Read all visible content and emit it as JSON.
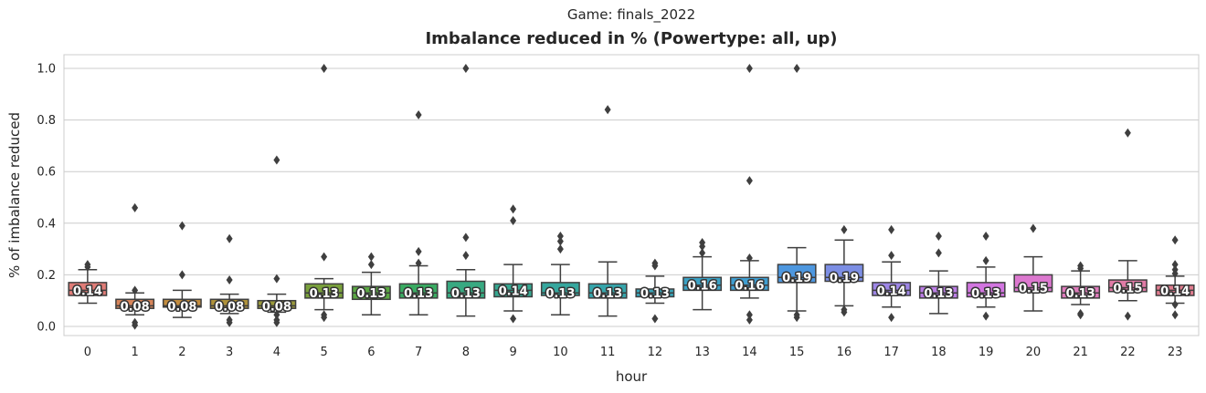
{
  "chart_data": {
    "type": "box",
    "suptitle": "Game: finals_2022",
    "title": "Imbalance reduced in % (Powertype: all, up)",
    "xlabel": "hour",
    "ylabel": "% of imbalance reduced",
    "ylim": [
      -0.04,
      1.05
    ],
    "yticks": [
      "0.0",
      "0.2",
      "0.4",
      "0.6",
      "0.8",
      "1.0"
    ],
    "grid": true,
    "legend": "none",
    "categories": [
      "0",
      "1",
      "2",
      "3",
      "4",
      "5",
      "6",
      "7",
      "8",
      "9",
      "10",
      "11",
      "12",
      "13",
      "14",
      "15",
      "16",
      "17",
      "18",
      "19",
      "20",
      "21",
      "22",
      "23"
    ],
    "colors": [
      "#e07c77",
      "#d8855a",
      "#c48d3f",
      "#b0923a",
      "#9b9a3b",
      "#7aa13c",
      "#5aa743",
      "#3aab62",
      "#38a981",
      "#36a891",
      "#35a79e",
      "#36a5ab",
      "#38a4b8",
      "#3ba1c4",
      "#3f9ed1",
      "#4d97df",
      "#7c8ee4",
      "#9e86e6",
      "#bb7de5",
      "#d275e0",
      "#dc78cf",
      "#de7bbb",
      "#e07ba6",
      "#e07c8f"
    ],
    "boxes": [
      {
        "whislo": 0.09,
        "q1": 0.12,
        "med": 0.14,
        "q3": 0.17,
        "whishi": 0.22,
        "fliers": [
          0.23,
          0.24
        ],
        "label": "0.14"
      },
      {
        "whislo": 0.045,
        "q1": 0.07,
        "med": 0.08,
        "q3": 0.105,
        "whishi": 0.13,
        "fliers": [
          0.46,
          0.14,
          0.015,
          0.005
        ],
        "label": "0.08"
      },
      {
        "whislo": 0.035,
        "q1": 0.075,
        "med": 0.08,
        "q3": 0.105,
        "whishi": 0.14,
        "fliers": [
          0.39,
          0.2
        ],
        "label": "0.08"
      },
      {
        "whislo": 0.05,
        "q1": 0.07,
        "med": 0.08,
        "q3": 0.105,
        "whishi": 0.125,
        "fliers": [
          0.34,
          0.18,
          0.025,
          0.015
        ],
        "label": "0.08"
      },
      {
        "whislo": 0.055,
        "q1": 0.07,
        "med": 0.08,
        "q3": 0.1,
        "whishi": 0.125,
        "fliers": [
          0.645,
          0.185,
          0.045,
          0.025,
          0.015
        ],
        "label": "0.08"
      },
      {
        "whislo": 0.065,
        "q1": 0.11,
        "med": 0.13,
        "q3": 0.165,
        "whishi": 0.185,
        "fliers": [
          1.0,
          0.27,
          0.045,
          0.035
        ],
        "label": "0.13"
      },
      {
        "whislo": 0.045,
        "q1": 0.105,
        "med": 0.13,
        "q3": 0.155,
        "whishi": 0.21,
        "fliers": [
          0.27,
          0.24
        ],
        "label": "0.13"
      },
      {
        "whislo": 0.045,
        "q1": 0.11,
        "med": 0.13,
        "q3": 0.165,
        "whishi": 0.235,
        "fliers": [
          0.82,
          0.29,
          0.245
        ],
        "label": "0.13"
      },
      {
        "whislo": 0.04,
        "q1": 0.11,
        "med": 0.13,
        "q3": 0.175,
        "whishi": 0.22,
        "fliers": [
          1.0,
          0.345,
          0.275
        ],
        "label": "0.13"
      },
      {
        "whislo": 0.06,
        "q1": 0.115,
        "med": 0.14,
        "q3": 0.165,
        "whishi": 0.24,
        "fliers": [
          0.455,
          0.41,
          0.03
        ],
        "label": "0.14"
      },
      {
        "whislo": 0.045,
        "q1": 0.12,
        "med": 0.13,
        "q3": 0.17,
        "whishi": 0.24,
        "fliers": [
          0.35,
          0.33,
          0.3
        ],
        "label": "0.13"
      },
      {
        "whislo": 0.04,
        "q1": 0.11,
        "med": 0.13,
        "q3": 0.165,
        "whishi": 0.25,
        "fliers": [
          0.84
        ],
        "label": "0.13"
      },
      {
        "whislo": 0.09,
        "q1": 0.115,
        "med": 0.13,
        "q3": 0.145,
        "whishi": 0.195,
        "fliers": [
          0.245,
          0.235,
          0.03
        ],
        "label": "0.13"
      },
      {
        "whislo": 0.065,
        "q1": 0.14,
        "med": 0.16,
        "q3": 0.19,
        "whishi": 0.27,
        "fliers": [
          0.325,
          0.31,
          0.285
        ],
        "label": "0.16"
      },
      {
        "whislo": 0.11,
        "q1": 0.14,
        "med": 0.16,
        "q3": 0.19,
        "whishi": 0.255,
        "fliers": [
          1.0,
          0.565,
          0.265,
          0.045,
          0.025
        ],
        "label": "0.16"
      },
      {
        "whislo": 0.06,
        "q1": 0.17,
        "med": 0.19,
        "q3": 0.24,
        "whishi": 0.305,
        "fliers": [
          1.0,
          0.045,
          0.035
        ],
        "label": "0.19"
      },
      {
        "whislo": 0.08,
        "q1": 0.175,
        "med": 0.19,
        "q3": 0.24,
        "whishi": 0.335,
        "fliers": [
          0.375,
          0.065,
          0.055
        ],
        "label": "0.19"
      },
      {
        "whislo": 0.075,
        "q1": 0.12,
        "med": 0.14,
        "q3": 0.17,
        "whishi": 0.25,
        "fliers": [
          0.375,
          0.275,
          0.035
        ],
        "label": "0.14"
      },
      {
        "whislo": 0.05,
        "q1": 0.11,
        "med": 0.13,
        "q3": 0.155,
        "whishi": 0.215,
        "fliers": [
          0.35,
          0.285
        ],
        "label": "0.13"
      },
      {
        "whislo": 0.075,
        "q1": 0.115,
        "med": 0.13,
        "q3": 0.17,
        "whishi": 0.23,
        "fliers": [
          0.35,
          0.255,
          0.04
        ],
        "label": "0.13"
      },
      {
        "whislo": 0.06,
        "q1": 0.135,
        "med": 0.15,
        "q3": 0.2,
        "whishi": 0.27,
        "fliers": [
          0.38
        ],
        "label": "0.15"
      },
      {
        "whislo": 0.085,
        "q1": 0.11,
        "med": 0.13,
        "q3": 0.155,
        "whishi": 0.215,
        "fliers": [
          0.235,
          0.225,
          0.05,
          0.045
        ],
        "label": "0.13"
      },
      {
        "whislo": 0.1,
        "q1": 0.135,
        "med": 0.15,
        "q3": 0.18,
        "whishi": 0.255,
        "fliers": [
          0.75,
          0.04
        ],
        "label": "0.15"
      },
      {
        "whislo": 0.09,
        "q1": 0.12,
        "med": 0.14,
        "q3": 0.16,
        "whishi": 0.195,
        "fliers": [
          0.335,
          0.24,
          0.22,
          0.205,
          0.085,
          0.045
        ],
        "label": "0.14"
      }
    ]
  }
}
